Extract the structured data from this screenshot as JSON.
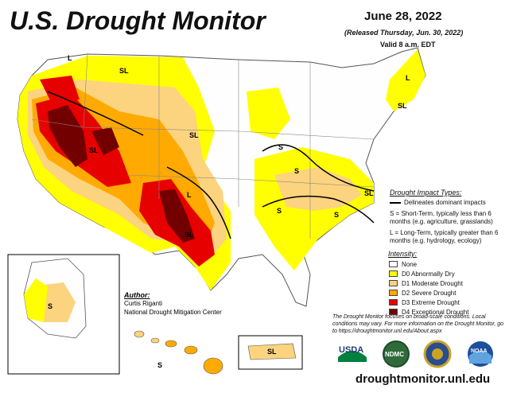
{
  "header": {
    "title": "U.S. Drought Monitor",
    "date": "June 28, 2022",
    "released": "(Released Thursday, Jun. 30, 2022)",
    "valid": "Valid 8 a.m. EDT"
  },
  "impact_types": {
    "title": "Drought Impact Types:",
    "delineates": "Delineates dominant impacts",
    "short_term": "S = Short-Term, typically less than 6 months (e.g. agriculture, grasslands)",
    "long_term": "L = Long-Term, typically greater than 6 months (e.g. hydrology, ecology)"
  },
  "intensity": {
    "title": "Intensity:",
    "levels": [
      {
        "label": "None",
        "color": "#ffffff"
      },
      {
        "label": "D0 Abnormally Dry",
        "color": "#ffff00"
      },
      {
        "label": "D1 Moderate Drought",
        "color": "#fcd37f"
      },
      {
        "label": "D2 Severe Drought",
        "color": "#ffaa00"
      },
      {
        "label": "D3 Extreme Drought",
        "color": "#e60000"
      },
      {
        "label": "D4 Exceptional Drought",
        "color": "#730000"
      }
    ]
  },
  "map_labels": {
    "sl": "SL",
    "s": "S",
    "l": "L"
  },
  "author": {
    "label": "Author:",
    "name": "Curtis Riganti",
    "org": "National Drought Mitigation Center"
  },
  "note": "The Drought Monitor focuses on broad-scale conditions. Local conditions may vary. For more information on the Drought Monitor, go to https://droughtmonitor.unl.edu/About.aspx",
  "logos": [
    "USDA",
    "NDMC",
    "NOAA"
  ],
  "url": "droughtmonitor.unl.edu"
}
